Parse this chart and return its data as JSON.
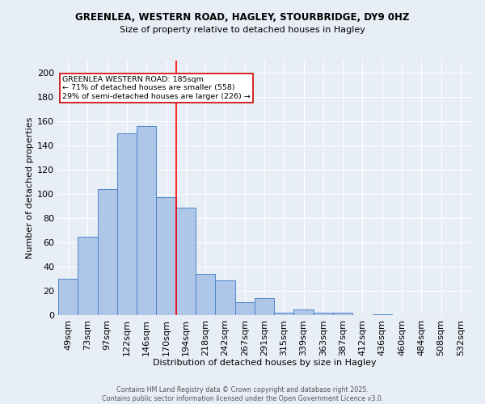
{
  "title1": "GREENLEA, WESTERN ROAD, HAGLEY, STOURBRIDGE, DY9 0HZ",
  "title2": "Size of property relative to detached houses in Hagley",
  "xlabel": "Distribution of detached houses by size in Hagley",
  "ylabel": "Number of detached properties",
  "bar_labels": [
    "49sqm",
    "73sqm",
    "97sqm",
    "122sqm",
    "146sqm",
    "170sqm",
    "194sqm",
    "218sqm",
    "242sqm",
    "267sqm",
    "291sqm",
    "315sqm",
    "339sqm",
    "363sqm",
    "387sqm",
    "412sqm",
    "436sqm",
    "460sqm",
    "484sqm",
    "508sqm",
    "532sqm"
  ],
  "bar_values": [
    30,
    65,
    104,
    150,
    156,
    97,
    89,
    34,
    29,
    11,
    14,
    2,
    5,
    2,
    2,
    0,
    1,
    0,
    0,
    0,
    0
  ],
  "bar_color": "#aec6e8",
  "bar_edge_color": "#4e86c8",
  "bg_color": "#e8eef6",
  "grid_color": "#ffffff",
  "red_line_x": 5.5,
  "annotation_text": "GREENLEA WESTERN ROAD: 185sqm\n← 71% of detached houses are smaller (558)\n29% of semi-detached houses are larger (226) →",
  "annotation_box_color": "#ffffff",
  "annotation_box_edge": "#cc0000",
  "footer1": "Contains HM Land Registry data © Crown copyright and database right 2025.",
  "footer2": "Contains public sector information licensed under the Open Government Licence v3.0.",
  "ylim": [
    0,
    210
  ],
  "yticks": [
    0,
    20,
    40,
    60,
    80,
    100,
    120,
    140,
    160,
    180,
    200
  ]
}
